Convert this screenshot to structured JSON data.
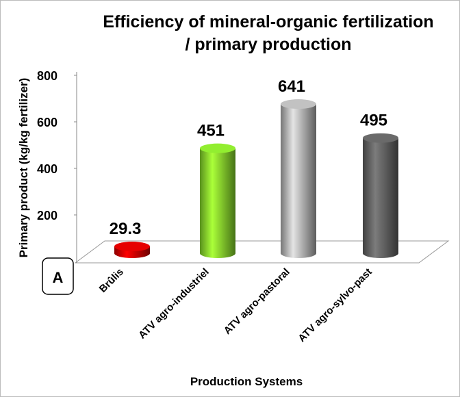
{
  "chart_data": {
    "type": "bar3d",
    "panel_label": "A",
    "title": [
      "Efficiency of mineral-organic fertilization",
      "/ primary production"
    ],
    "y_label": "Primary product  (kg/kg fertilizer)",
    "x_label": "Production Systems",
    "categories": [
      "Brûlis",
      "ATV agro-industriel",
      "ATV agro-pastoral",
      "ATV agro-sylvo-past"
    ],
    "values": [
      29.3,
      451,
      641,
      495
    ],
    "colors": [
      "#c80000",
      "#7fcf2a",
      "#a9a9a9",
      "#5c5c5c"
    ],
    "ylim": [
      0,
      800
    ],
    "yticks": [
      200,
      400,
      600,
      800
    ],
    "grid": false
  }
}
